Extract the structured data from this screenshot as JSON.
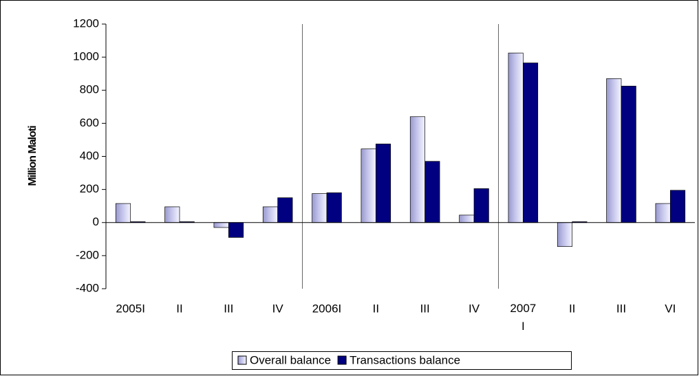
{
  "chart_data": {
    "type": "bar",
    "y_label": "Million Maloti",
    "categories": [
      "2005I",
      "II",
      "III",
      "IV",
      "2006I",
      "II",
      "III",
      "IV",
      "2007 I",
      "II",
      "III",
      "VI"
    ],
    "series": [
      {
        "name": "Overall balance",
        "color": "#c4c4ec",
        "values": [
          115,
          95,
          -30,
          95,
          175,
          445,
          640,
          45,
          1025,
          -145,
          870,
          115
        ]
      },
      {
        "name": "Transactions balance",
        "color": "#000080",
        "values": [
          5,
          5,
          -90,
          150,
          180,
          475,
          370,
          205,
          965,
          5,
          825,
          195
        ]
      }
    ],
    "ylim": [
      -400,
      1200
    ],
    "yticks": [
      -400,
      -200,
      0,
      200,
      400,
      600,
      800,
      1000,
      1200
    ],
    "grid": false,
    "legend": "bottom"
  }
}
